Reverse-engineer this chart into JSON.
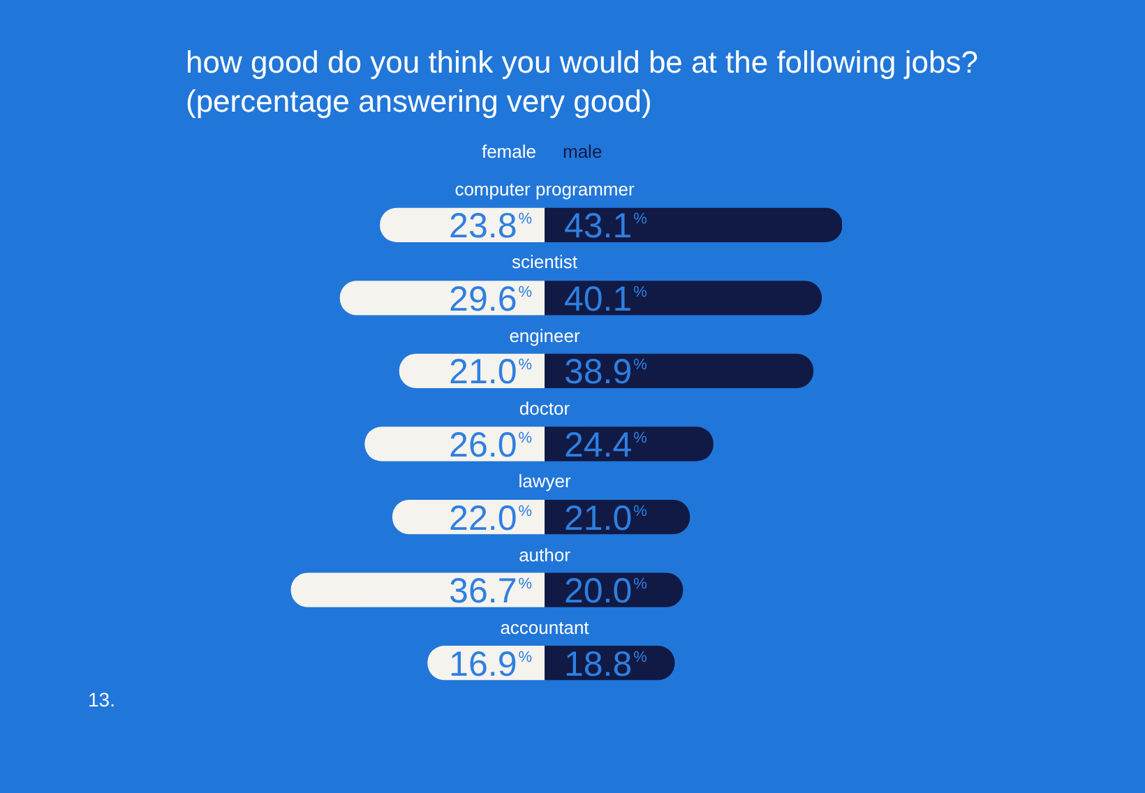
{
  "chart_data": [
    {
      "type": "bar",
      "orientation": "horizontal",
      "title": "how good do you think you would be at the following jobs?",
      "subtitle": "(percentage answering very good)",
      "categories": [
        "computer programmer",
        "scientist",
        "engineer",
        "doctor",
        "lawyer",
        "author",
        "accountant"
      ],
      "series": [
        {
          "name": "female",
          "color": "#f5f3ee",
          "values": [
            23.8,
            29.6,
            21.0,
            26.0,
            22.0,
            36.7,
            16.9
          ],
          "value_labels": [
            "23.8%",
            "29.6%",
            "21.0%",
            "26.0%",
            "22.0%",
            "36.7%",
            "16.9%"
          ]
        }
      ],
      "legend": "top",
      "annotations": [
        "13."
      ]
    },
    {
      "type": "bar",
      "orientation": "horizontal",
      "categories": [
        null,
        null,
        null,
        null,
        null,
        null,
        null
      ],
      "series": [
        {
          "name": "male",
          "color": "#101a45",
          "values": [
            43.1,
            40.1,
            38.9,
            24.4,
            21.0,
            20.0,
            18.8
          ],
          "value_labels": [
            "43.1%",
            "40.1%",
            "38.9%",
            "24.4%",
            "21.0%",
            "20.0%",
            "18.8%"
          ]
        }
      ],
      "legend": "top"
    }
  ]
}
